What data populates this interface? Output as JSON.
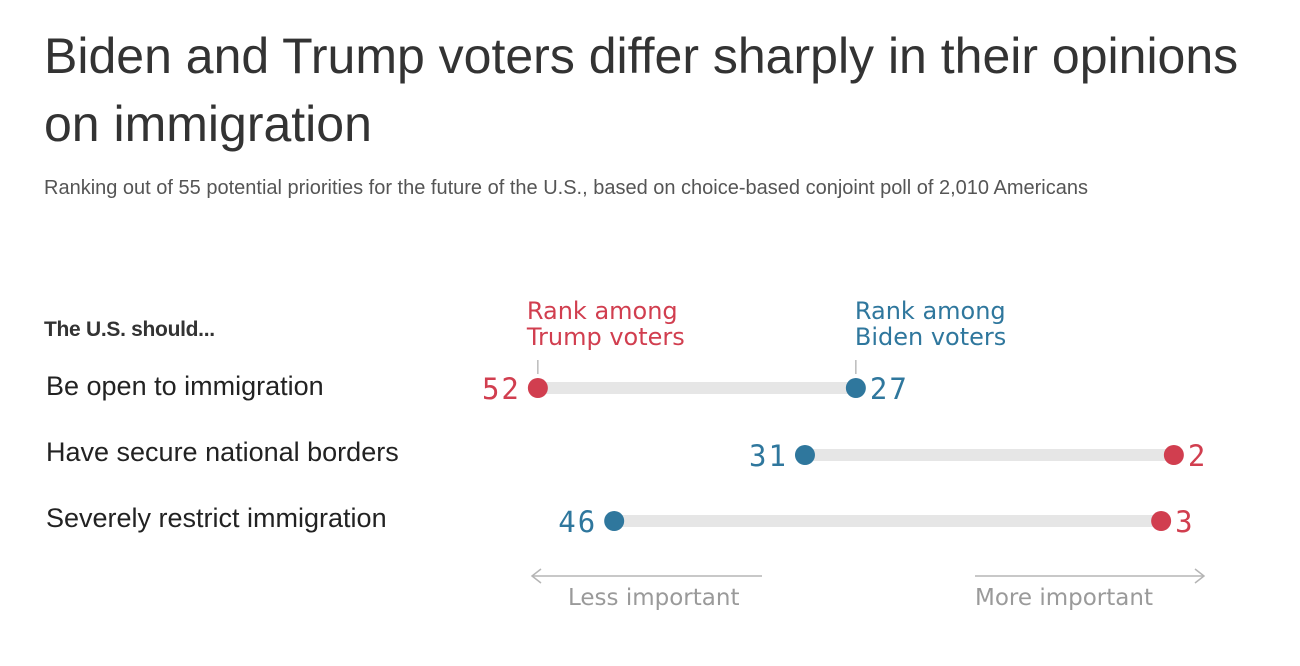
{
  "header": {
    "title": "Biden and Trump voters differ sharply in their opinions on immigration",
    "subtitle": "Ranking out of 55 potential priorities for the future of the U.S., based on choice-based conjoint poll of 2,010 Americans"
  },
  "chart_data": {
    "type": "dumbbell",
    "row_header": "The U.S. should...",
    "categories": [
      "Be open to immigration",
      "Have secure national borders",
      "Severely restrict immigration"
    ],
    "series": [
      {
        "name": "Rank among Trump voters",
        "values": [
          52,
          2,
          3
        ],
        "color": "#d13e4f"
      },
      {
        "name": "Rank among Biden voters",
        "values": [
          27,
          31,
          46
        ],
        "color": "#2f779d"
      }
    ],
    "x_range": [
      55,
      1
    ],
    "axis_labels": {
      "left": "Less important",
      "right": "More important"
    },
    "track_color": "#e6e6e6"
  }
}
